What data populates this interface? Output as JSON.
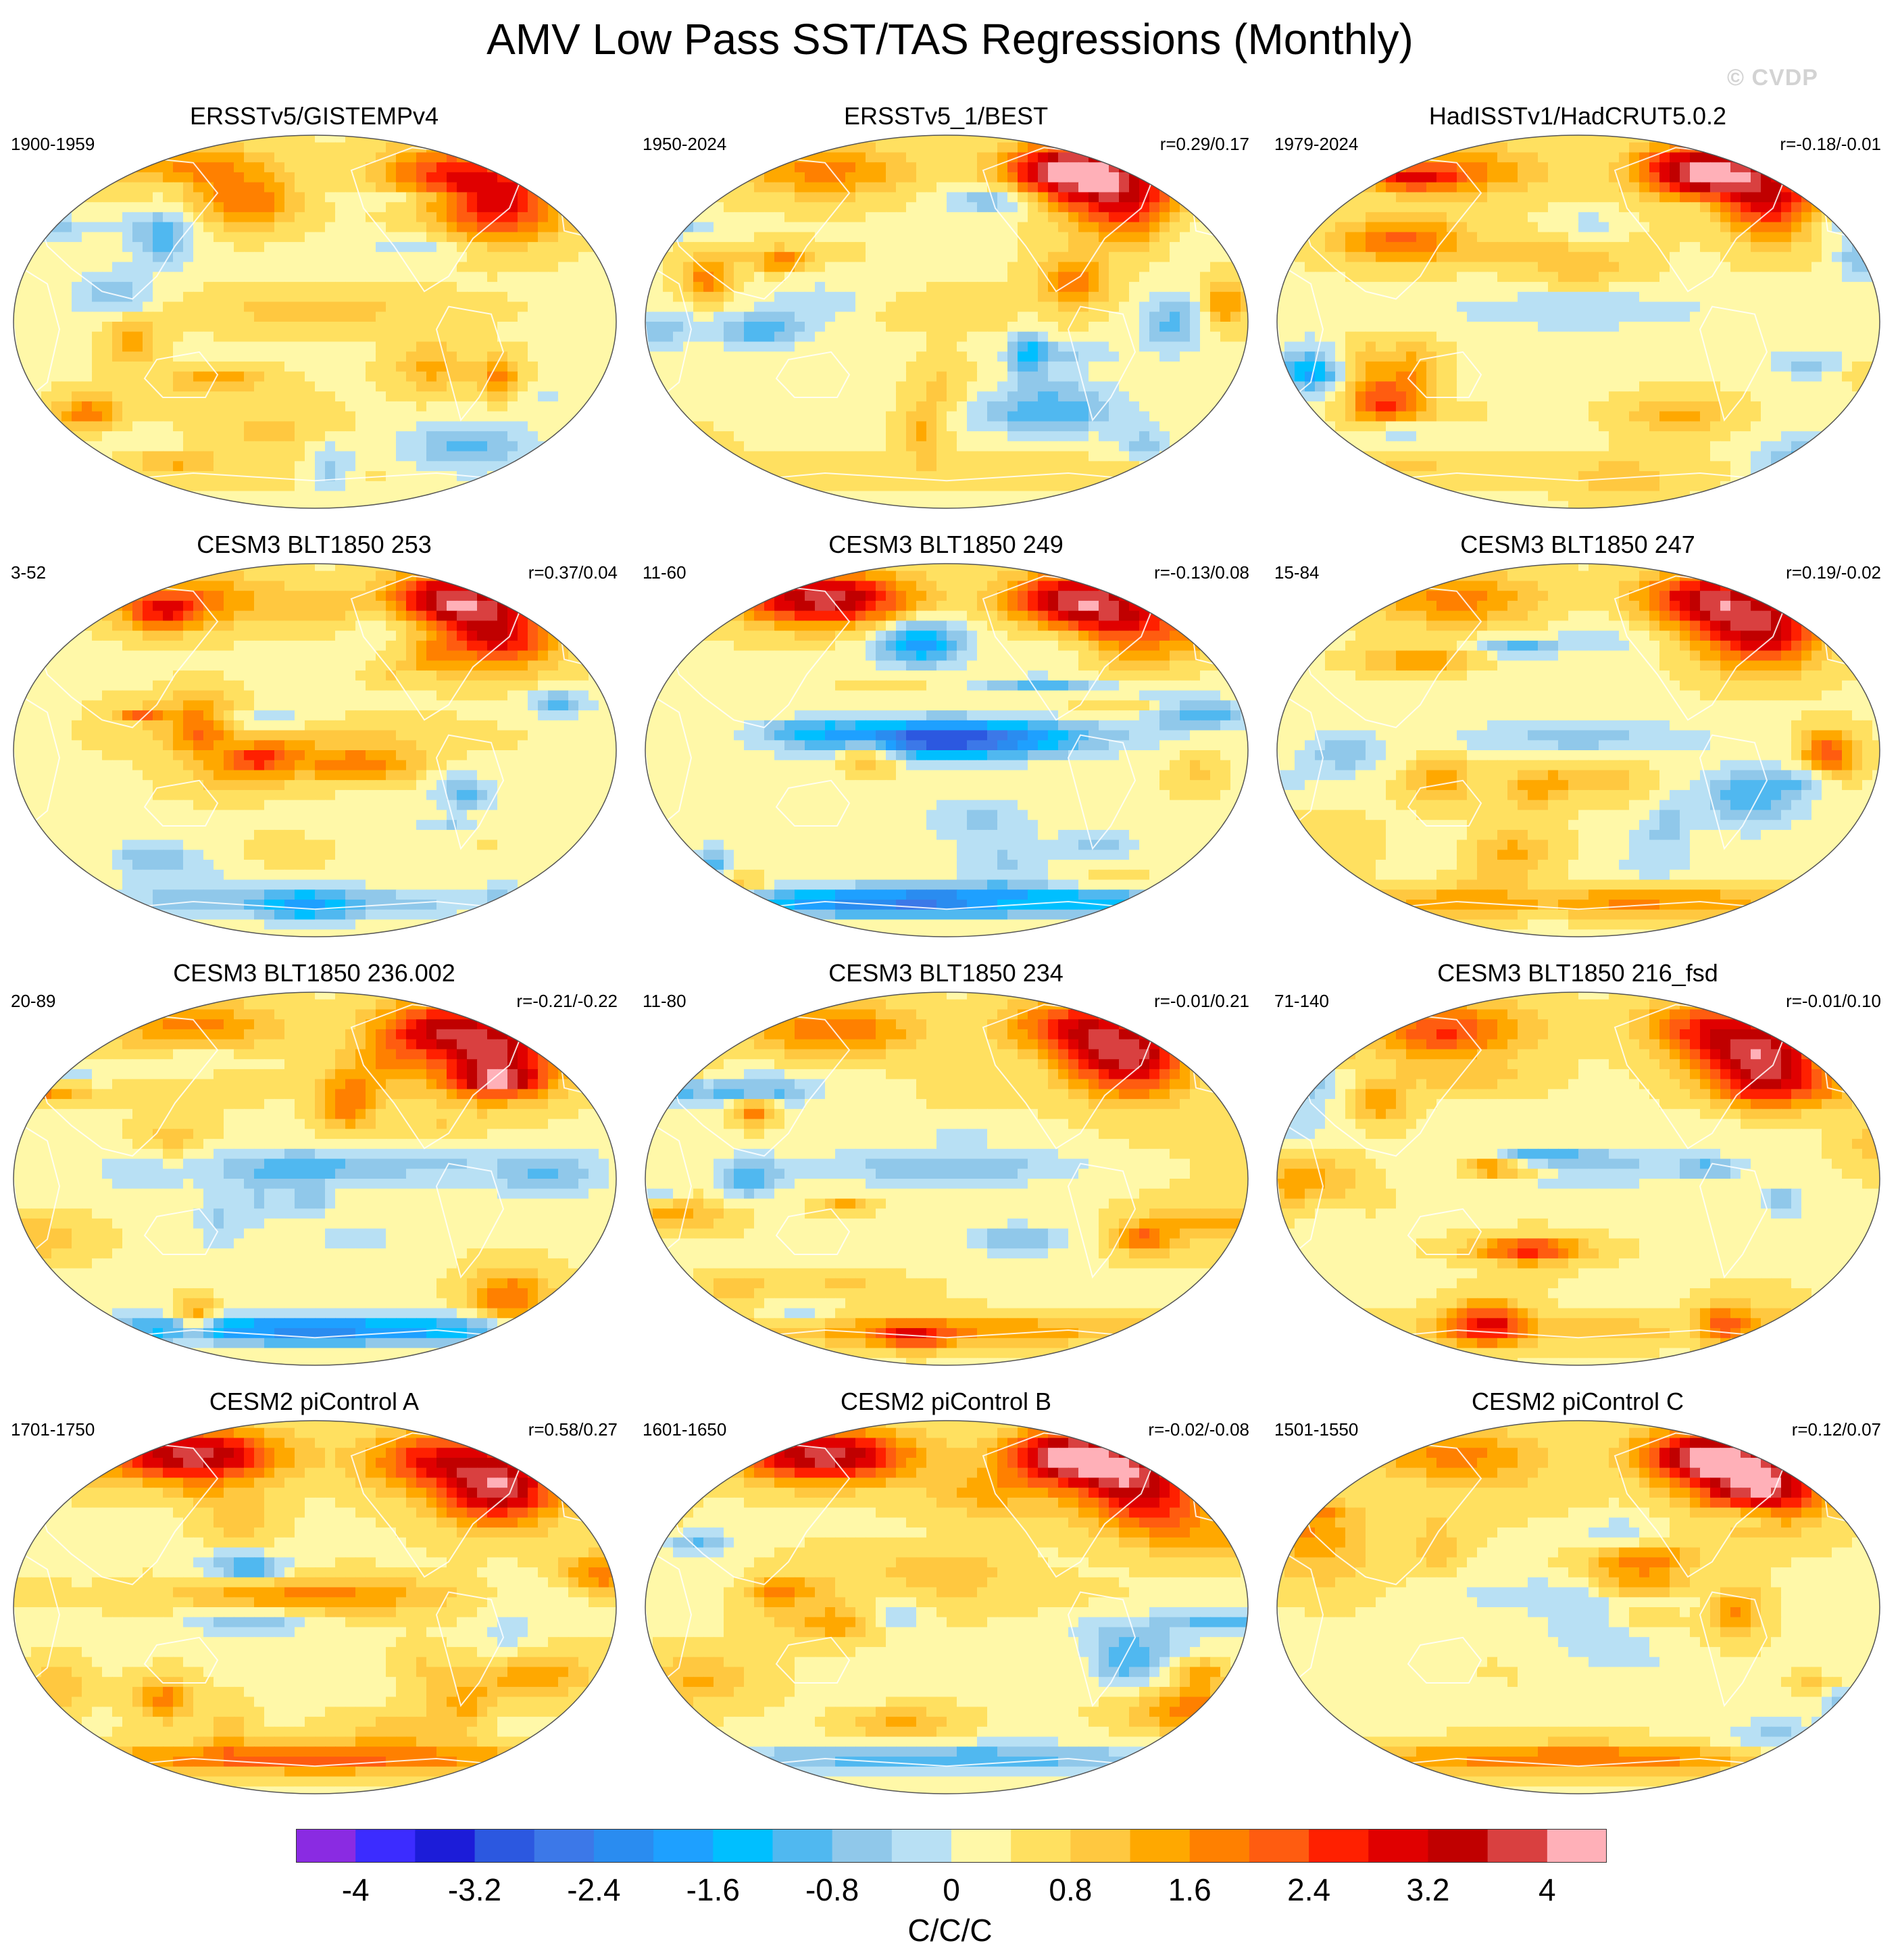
{
  "title": "AMV Low Pass SST/TAS Regressions (Monthly)",
  "watermark": "© CVDP",
  "chart_data": {
    "type": "heatmap",
    "projection": "Robinson-like global map, Pacific-centered",
    "title": "AMV Low Pass SST/TAS Regressions (Monthly)",
    "panels": [
      {
        "title": "ERSSTv5/GISTEMPv4",
        "period": "1900-1959",
        "r": "",
        "pattern": 0
      },
      {
        "title": "ERSSTv5_1/BEST",
        "period": "1950-2024",
        "r": "r=0.29/0.17",
        "pattern": 1
      },
      {
        "title": "HadISSTv1/HadCRUT5.0.2",
        "period": "1979-2024",
        "r": "r=-0.18/-0.01",
        "pattern": 2
      },
      {
        "title": "CESM3 BLT1850 253",
        "period": "3-52",
        "r": "r=0.37/0.04",
        "pattern": 3
      },
      {
        "title": "CESM3 BLT1850 249",
        "period": "11-60",
        "r": "r=-0.13/0.08",
        "pattern": 4
      },
      {
        "title": "CESM3 BLT1850 247",
        "period": "15-84",
        "r": "r=0.19/-0.02",
        "pattern": 5
      },
      {
        "title": "CESM3 BLT1850 236.002",
        "period": "20-89",
        "r": "r=-0.21/-0.22",
        "pattern": 6
      },
      {
        "title": "CESM3 BLT1850 234",
        "period": "11-80",
        "r": "r=-0.01/0.21",
        "pattern": 7
      },
      {
        "title": "CESM3 BLT1850 216_fsd",
        "period": "71-140",
        "r": "r=-0.01/0.10",
        "pattern": 8
      },
      {
        "title": "CESM2 piControl A",
        "period": "1701-1750",
        "r": "r=0.58/0.27",
        "pattern": 9
      },
      {
        "title": "CESM2 piControl B",
        "period": "1601-1650",
        "r": "r=-0.02/-0.08",
        "pattern": 10
      },
      {
        "title": "CESM2 piControl C",
        "period": "1501-1550",
        "r": "r=0.12/0.07",
        "pattern": 11
      }
    ],
    "colorbar": {
      "units": "C/C/C",
      "range": [
        -4.4,
        4.4
      ],
      "step": 0.4,
      "tick_labels": [
        "-4",
        "-3.2",
        "-2.4",
        "-1.6",
        "-0.8",
        "0",
        "0.8",
        "1.6",
        "2.4",
        "3.2",
        "4"
      ],
      "tick_values": [
        -4,
        -3.2,
        -2.4,
        -1.6,
        -0.8,
        0,
        0.8,
        1.6,
        2.4,
        3.2,
        4
      ],
      "colors": [
        "#8a2be2",
        "#3c2cff",
        "#1c1cd8",
        "#2c58e0",
        "#3c78e8",
        "#2a8cf0",
        "#1ea0ff",
        "#00bfff",
        "#50b8f0",
        "#90c8ea",
        "#b8e0f4",
        "#fff8a8",
        "#ffe060",
        "#ffc840",
        "#ffa800",
        "#ff8000",
        "#ff5c10",
        "#ff2000",
        "#e00000",
        "#c00000",
        "#d94040",
        "#ffb0b8"
      ]
    }
  }
}
